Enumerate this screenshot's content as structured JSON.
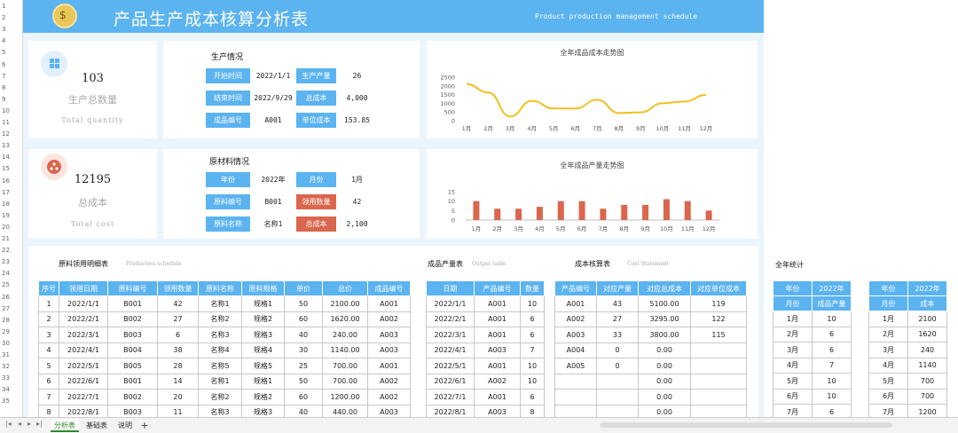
{
  "row_numbers": [
    "1",
    "2",
    "3",
    "4",
    "5",
    "6",
    "7",
    "8",
    "9",
    "10",
    "11",
    "12",
    "13",
    "14",
    "15",
    "16",
    "17",
    "18",
    "19",
    "20",
    "21",
    "22",
    "23",
    "24",
    "25",
    "26",
    "27",
    "28",
    "29",
    "30",
    "31",
    "32",
    "33",
    "34",
    "35"
  ],
  "banner": {
    "icon": "money-bag-icon",
    "title": "产品生产成本核算分析表",
    "subtitle": "Product production management schedule"
  },
  "kpi1": {
    "value": "103",
    "label": "生产总数量",
    "label_en": "Total quantity",
    "icon": "grid-icon"
  },
  "kpi2": {
    "value": "12195",
    "label": "总成本",
    "label_en": "Total cost",
    "icon": "network-icon"
  },
  "production": {
    "title": "生产情况",
    "start_label": "开始时间",
    "start_value": "2022/1/1",
    "qty_label": "生产产量",
    "qty_value": "26",
    "end_label": "结束时间",
    "end_value": "2022/9/29",
    "cost_label": "总成本",
    "cost_value": "4,000",
    "code_label": "成品编号",
    "code_value": "A001",
    "unit_label": "单位成本",
    "unit_value": "153.85"
  },
  "material": {
    "title": "原材料情况",
    "year_label": "年份",
    "year_value": "2022年",
    "month_label": "月份",
    "month_value": "1月",
    "code_label": "原料编号",
    "code_value": "B001",
    "use_label": "领用数量",
    "use_value": "42",
    "name_label": "原料名称",
    "name_value": "名称1",
    "cost_label": "总成本",
    "cost_value": "2,100"
  },
  "chart_data": [
    {
      "type": "line",
      "title": "全年成品成本走势图",
      "categories": [
        "1月",
        "2月",
        "3月",
        "4月",
        "5月",
        "6月",
        "7月",
        "8月",
        "9月",
        "10月",
        "11月",
        "12月"
      ],
      "values": [
        2100,
        1620,
        240,
        1140,
        700,
        700,
        1200,
        440,
        480,
        1000,
        1100,
        1480
      ],
      "yticks": [
        "2500",
        "2000",
        "1500",
        "1000",
        "500",
        "0"
      ],
      "ylim": [
        0,
        2500
      ],
      "color": "#f0c020"
    },
    {
      "type": "bar",
      "title": "全年成品产量走势图",
      "categories": [
        "1月",
        "2月",
        "3月",
        "4月",
        "5月",
        "6月",
        "7月",
        "8月",
        "9月",
        "10月",
        "11月",
        "12月"
      ],
      "values": [
        10,
        6,
        6,
        7,
        10,
        10,
        6,
        8,
        8,
        11,
        10,
        5
      ],
      "yticks": [
        "15",
        "10",
        "5",
        "0"
      ],
      "ylim": [
        0,
        15
      ],
      "color": "#d9664d"
    }
  ],
  "materials_table": {
    "label": "原料领用明细表",
    "sub": "Production schedule",
    "headers": [
      "序号",
      "领用日期",
      "原料编号",
      "领用数量",
      "原料名称",
      "原料规格",
      "单价",
      "总价",
      "成品编号"
    ],
    "rows": [
      [
        "1",
        "2022/1/1",
        "B001",
        "42",
        "名称1",
        "规格1",
        "50",
        "2100.00",
        "A001"
      ],
      [
        "2",
        "2022/2/1",
        "B002",
        "27",
        "名称2",
        "规格2",
        "60",
        "1620.00",
        "A002"
      ],
      [
        "3",
        "2022/3/1",
        "B003",
        "6",
        "名称3",
        "规格3",
        "40",
        "240.00",
        "A003"
      ],
      [
        "4",
        "2022/4/1",
        "B004",
        "38",
        "名称4",
        "规格4",
        "30",
        "1140.00",
        "A003"
      ],
      [
        "5",
        "2022/5/1",
        "B005",
        "28",
        "名称5",
        "规格5",
        "25",
        "700.00",
        "A001"
      ],
      [
        "6",
        "2022/6/1",
        "B001",
        "14",
        "名称1",
        "规格1",
        "50",
        "700.00",
        "A002"
      ],
      [
        "7",
        "2022/7/1",
        "B002",
        "20",
        "名称2",
        "规格2",
        "60",
        "1200.00",
        "A002"
      ],
      [
        "8",
        "2022/8/1",
        "B003",
        "11",
        "名称3",
        "规格3",
        "40",
        "440.00",
        "A003"
      ]
    ]
  },
  "output_table": {
    "label": "成品产量表",
    "sub": "Output table",
    "headers": [
      "日期",
      "产品编号",
      "数量"
    ],
    "rows": [
      [
        "2022/1/1",
        "A001",
        "10"
      ],
      [
        "2022/2/1",
        "A001",
        "6"
      ],
      [
        "2022/3/1",
        "A001",
        "6"
      ],
      [
        "2022/4/1",
        "A003",
        "7"
      ],
      [
        "2022/5/1",
        "A001",
        "10"
      ],
      [
        "2022/6/1",
        "A002",
        "10"
      ],
      [
        "2022/7/1",
        "A001",
        "6"
      ],
      [
        "2022/8/1",
        "A003",
        "8"
      ]
    ]
  },
  "cost_table": {
    "label": "成本核算表",
    "sub": "Cost Statement",
    "headers": [
      "产品编号",
      "对应产量",
      "对应总成本",
      "对应单位成本"
    ],
    "rows": [
      [
        "A001",
        "43",
        "5100.00",
        "119"
      ],
      [
        "A002",
        "27",
        "3295.00",
        "122"
      ],
      [
        "A003",
        "33",
        "3800.00",
        "115"
      ],
      [
        "A004",
        "0",
        "0.00",
        ""
      ],
      [
        "A005",
        "0",
        "0.00",
        ""
      ],
      [
        "",
        "",
        "0.00",
        ""
      ],
      [
        "",
        "",
        "0.00",
        ""
      ],
      [
        "",
        "",
        "0.00",
        ""
      ]
    ]
  },
  "annual": {
    "label": "全年统计",
    "qty": {
      "year_label": "年份",
      "year_value": "2022年",
      "h1": "月份",
      "h2": "成品产量",
      "rows": [
        [
          "1月",
          "10"
        ],
        [
          "2月",
          "6"
        ],
        [
          "3月",
          "6"
        ],
        [
          "4月",
          "7"
        ],
        [
          "5月",
          "10"
        ],
        [
          "6月",
          "10"
        ],
        [
          "7月",
          "6"
        ]
      ]
    },
    "cost": {
      "year_label": "年份",
      "year_value": "2022年",
      "h1": "月份",
      "h2": "成本",
      "rows": [
        [
          "1月",
          "2100"
        ],
        [
          "2月",
          "1620"
        ],
        [
          "3月",
          "240"
        ],
        [
          "4月",
          "1140"
        ],
        [
          "5月",
          "700"
        ],
        [
          "6月",
          "700"
        ],
        [
          "7月",
          "1200"
        ]
      ]
    }
  },
  "tabs": {
    "t1": "分析表",
    "t2": "基础表",
    "t3": "说明",
    "add": "+"
  }
}
